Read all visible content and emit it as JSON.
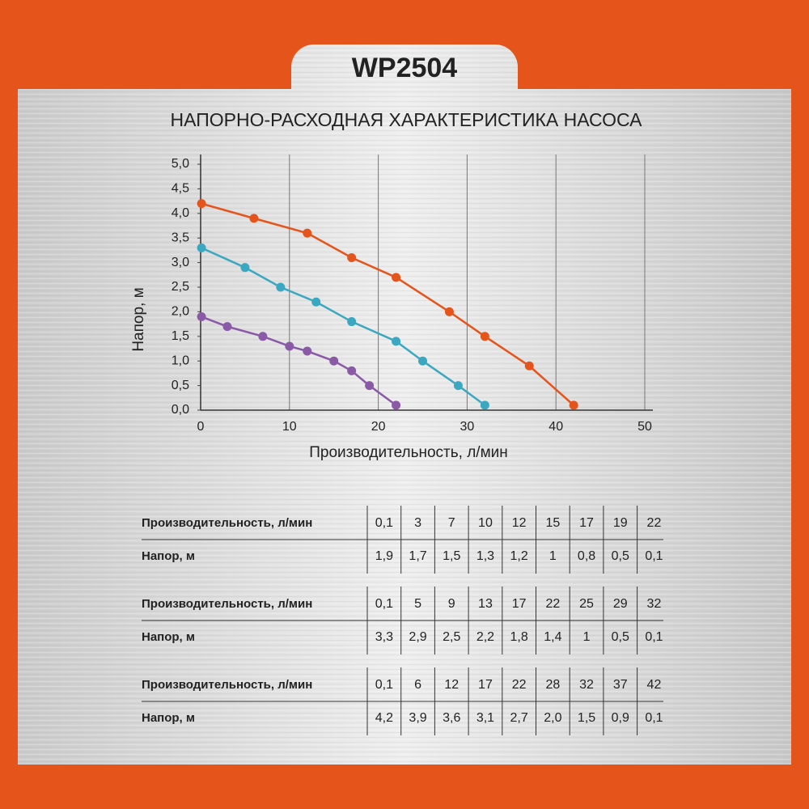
{
  "title": "WP2504",
  "chart_data": {
    "type": "line",
    "title": "НАПОРНО-РАСХОДНАЯ ХАРАКТЕРИСТИКА НАСОСА",
    "x_label": "Производительность, л/мин",
    "y_label": "Напор, м",
    "series": [
      {
        "color": "#e5541b",
        "x": [
          0.1,
          6,
          12,
          17,
          22,
          28,
          32,
          37,
          42
        ],
        "values": [
          4.2,
          3.9,
          3.6,
          3.1,
          2.7,
          2.0,
          1.5,
          0.9,
          0.1
        ]
      },
      {
        "color": "#3aa8c0",
        "x": [
          0.1,
          5,
          9,
          13,
          17,
          22,
          25,
          29,
          32
        ],
        "values": [
          3.3,
          2.9,
          2.5,
          2.2,
          1.8,
          1.4,
          1,
          0.5,
          0.1
        ]
      },
      {
        "color": "#8a5aa6",
        "x": [
          0.1,
          3,
          7,
          10,
          12,
          15,
          17,
          19,
          22
        ],
        "values": [
          1.9,
          1.7,
          1.5,
          1.3,
          1.2,
          1,
          0.8,
          0.5,
          0.1
        ]
      }
    ],
    "xlim": [
      0,
      50
    ],
    "xticks": [
      0,
      10,
      20,
      30,
      40,
      50
    ],
    "ylim": [
      0,
      5
    ],
    "yticks": [
      {
        "value": 0,
        "label": "0,0"
      },
      {
        "value": 0.5,
        "label": "0,5"
      },
      {
        "value": 1,
        "label": "1,0"
      },
      {
        "value": 1.5,
        "label": "1,5"
      },
      {
        "value": 2,
        "label": "2,0"
      },
      {
        "value": 2.5,
        "label": "2,5"
      },
      {
        "value": 3,
        "label": "3,0"
      },
      {
        "value": 3.5,
        "label": "3,5"
      },
      {
        "value": 4,
        "label": "4,0"
      },
      {
        "value": 4.5,
        "label": "4,5"
      },
      {
        "value": 5,
        "label": "5,0"
      }
    ],
    "grid": true
  },
  "tables": [
    {
      "rows": [
        [
          "Производительность, л/мин",
          "0,1",
          "3",
          "7",
          "10",
          "12",
          "15",
          "17",
          "19",
          "22"
        ],
        [
          "Напор, м",
          "1,9",
          "1,7",
          "1,5",
          "1,3",
          "1,2",
          "1",
          "0,8",
          "0,5",
          "0,1"
        ]
      ]
    },
    {
      "rows": [
        [
          "Производительность, л/мин",
          "0,1",
          "5",
          "9",
          "13",
          "17",
          "22",
          "25",
          "29",
          "32"
        ],
        [
          "Напор, м",
          "3,3",
          "2,9",
          "2,5",
          "2,2",
          "1,8",
          "1,4",
          "1",
          "0,5",
          "0,1"
        ]
      ]
    },
    {
      "rows": [
        [
          "Производительность, л/мин",
          "0,1",
          "6",
          "12",
          "17",
          "22",
          "28",
          "32",
          "37",
          "42"
        ],
        [
          "Напор, м",
          "4,2",
          "3,9",
          "3,6",
          "3,1",
          "2,7",
          "2,0",
          "1,5",
          "0,9",
          "0,1"
        ]
      ]
    }
  ]
}
